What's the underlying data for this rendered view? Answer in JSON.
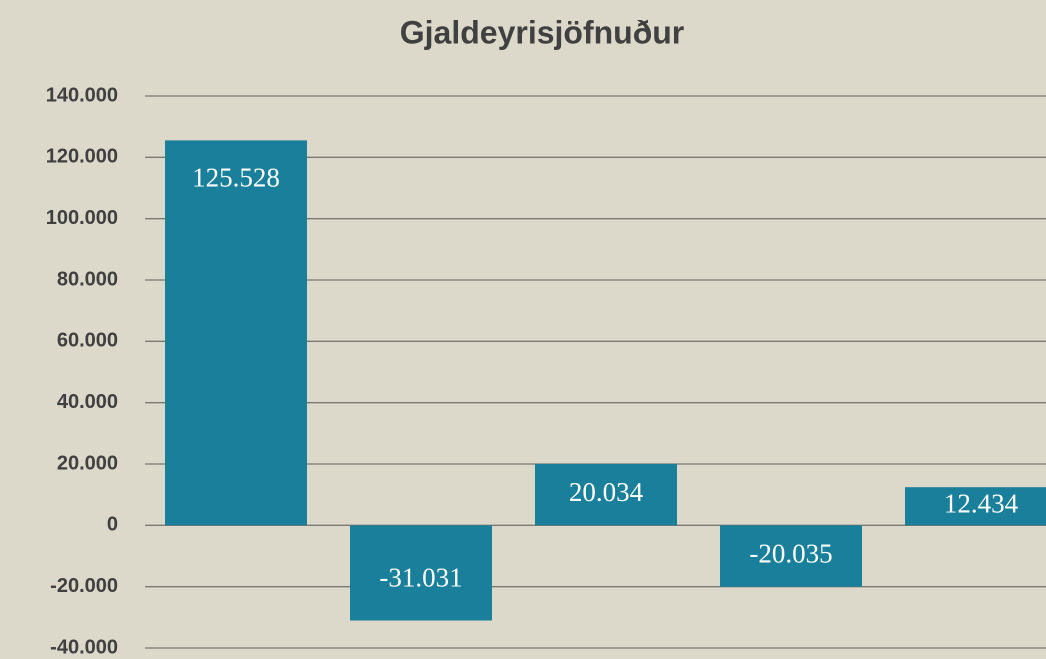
{
  "chart_data": {
    "type": "bar",
    "title": "Gjaldeyrisjöfnuður",
    "categories": [
      null,
      null,
      null,
      null,
      null
    ],
    "values": [
      125528,
      -31031,
      20034,
      -20035,
      12434
    ],
    "value_labels": [
      "125.528",
      "-31.031",
      "20.034",
      "-20.035",
      "12.434"
    ],
    "color": "#1a7f9a",
    "ylim": [
      -40000,
      140000
    ],
    "yticks": [
      {
        "value": -40000,
        "label": "-40.000"
      },
      {
        "value": -20000,
        "label": "-20.000"
      },
      0,
      {
        "value": 20000,
        "label": "20.000"
      },
      {
        "value": 40000,
        "label": "40.000"
      },
      {
        "value": 60000,
        "label": "60.000"
      },
      {
        "value": 80000,
        "label": "80.000"
      },
      {
        "value": 100000,
        "label": "100.000"
      },
      {
        "value": 120000,
        "label": "120.000"
      },
      {
        "value": 140000,
        "label": "140.000"
      }
    ],
    "grid": true
  }
}
